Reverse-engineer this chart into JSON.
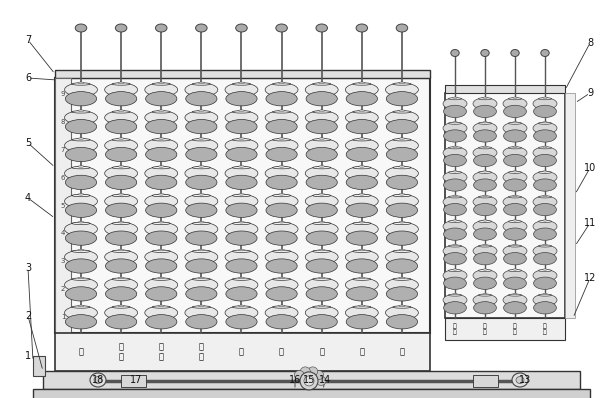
{
  "bg_color": "#ffffff",
  "label_row": [
    "亿",
    "千\n万",
    "百\n万",
    "十\n万",
    "万",
    "千",
    "百",
    "十",
    "个"
  ],
  "num_cols_main": 9,
  "num_cols_side": 4,
  "num_beads_main": 9,
  "num_beads_side": 9,
  "bead_fill": "#e8e8e8",
  "bead_fill_dark": "#b0b0b0",
  "bead_stroke": "#333333",
  "frame_color": "#333333",
  "rod_color": "#555555"
}
